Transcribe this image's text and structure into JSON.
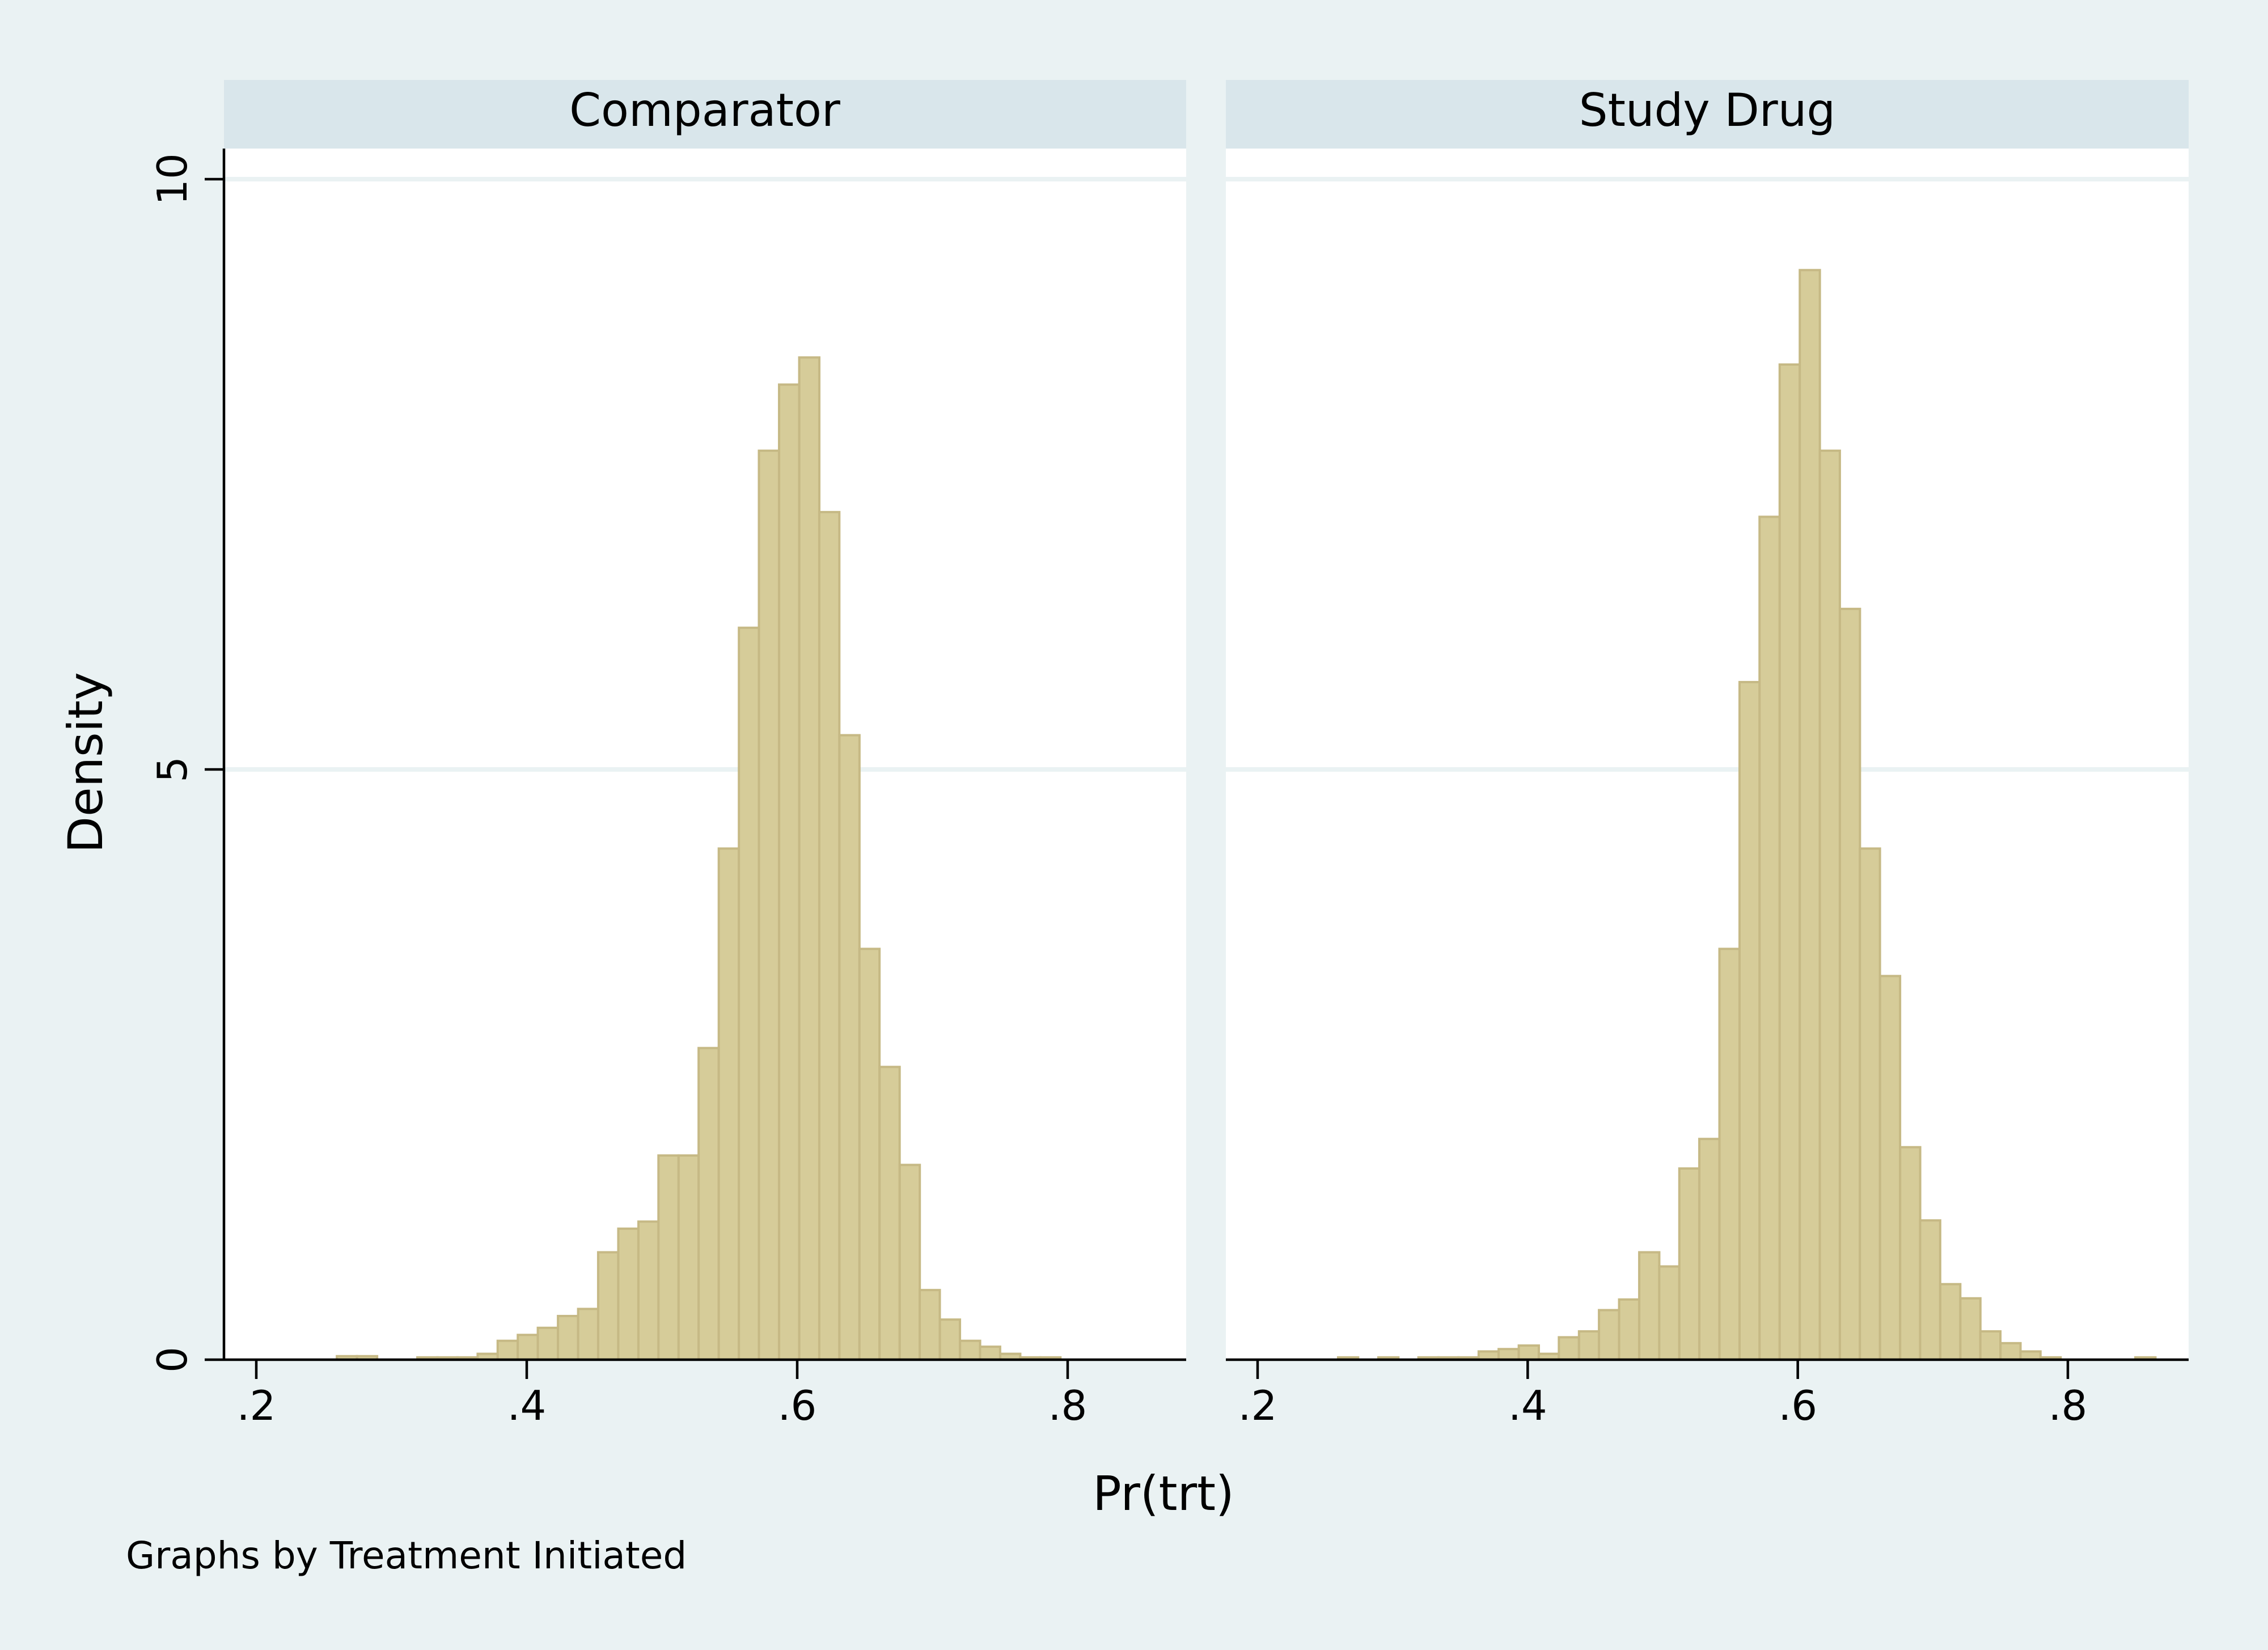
{
  "chart_data": {
    "type": "bar",
    "variant": "histogram",
    "xlabel": "Pr(trt)",
    "ylabel": "Density",
    "xlim": [
      0.18,
      0.88
    ],
    "ylim": [
      0,
      10.2
    ],
    "xticks": [
      {
        "value": 0.2,
        "label": ".2"
      },
      {
        "value": 0.4,
        "label": ".4"
      },
      {
        "value": 0.6,
        "label": ".6"
      },
      {
        "value": 0.8,
        "label": ".8"
      }
    ],
    "yticks": [
      {
        "value": 0,
        "label": "0"
      },
      {
        "value": 5,
        "label": "5"
      },
      {
        "value": 10,
        "label": "10"
      }
    ],
    "grid": true,
    "bin_width": 0.01486,
    "note": "Graphs by Treatment Initiated",
    "panels": [
      {
        "title": "Comparator",
        "bins_start": [
          0.2596,
          0.2745,
          0.3191,
          0.3339,
          0.3488,
          0.3637,
          0.3785,
          0.3934,
          0.4082,
          0.4231,
          0.438,
          0.4528,
          0.4677,
          0.4826,
          0.4974,
          0.5123,
          0.5271,
          0.542,
          0.5569,
          0.5717,
          0.5866,
          0.6015,
          0.6163,
          0.6312,
          0.646,
          0.6609,
          0.6758,
          0.6906,
          0.7055,
          0.7204,
          0.7352,
          0.7501,
          0.7649,
          0.7798
        ],
        "values": [
          0.03,
          0.03,
          0.02,
          0.02,
          0.02,
          0.05,
          0.16,
          0.21,
          0.27,
          0.37,
          0.43,
          0.91,
          1.11,
          1.17,
          1.73,
          1.73,
          2.64,
          4.33,
          6.2,
          7.7,
          8.26,
          8.49,
          7.18,
          5.29,
          3.48,
          2.48,
          1.65,
          0.59,
          0.34,
          0.16,
          0.11,
          0.05,
          0.02,
          0.02
        ]
      },
      {
        "title": "Study Drug",
        "bins_start": [
          0.2596,
          0.2894,
          0.3191,
          0.3339,
          0.3488,
          0.3637,
          0.3785,
          0.3934,
          0.4082,
          0.4231,
          0.438,
          0.4528,
          0.4677,
          0.4826,
          0.4974,
          0.5123,
          0.5271,
          0.542,
          0.5569,
          0.5717,
          0.5866,
          0.6015,
          0.6163,
          0.6312,
          0.646,
          0.6609,
          0.6758,
          0.6906,
          0.7055,
          0.7204,
          0.7352,
          0.7501,
          0.7649,
          0.7798,
          0.85
        ],
        "values": [
          0.02,
          0.02,
          0.02,
          0.02,
          0.02,
          0.07,
          0.09,
          0.12,
          0.05,
          0.19,
          0.24,
          0.42,
          0.51,
          0.91,
          0.79,
          1.62,
          1.87,
          3.48,
          5.74,
          7.14,
          8.43,
          9.23,
          7.7,
          6.36,
          4.33,
          3.25,
          1.8,
          1.18,
          0.64,
          0.52,
          0.24,
          0.14,
          0.07,
          0.02,
          0.02
        ]
      }
    ]
  }
}
